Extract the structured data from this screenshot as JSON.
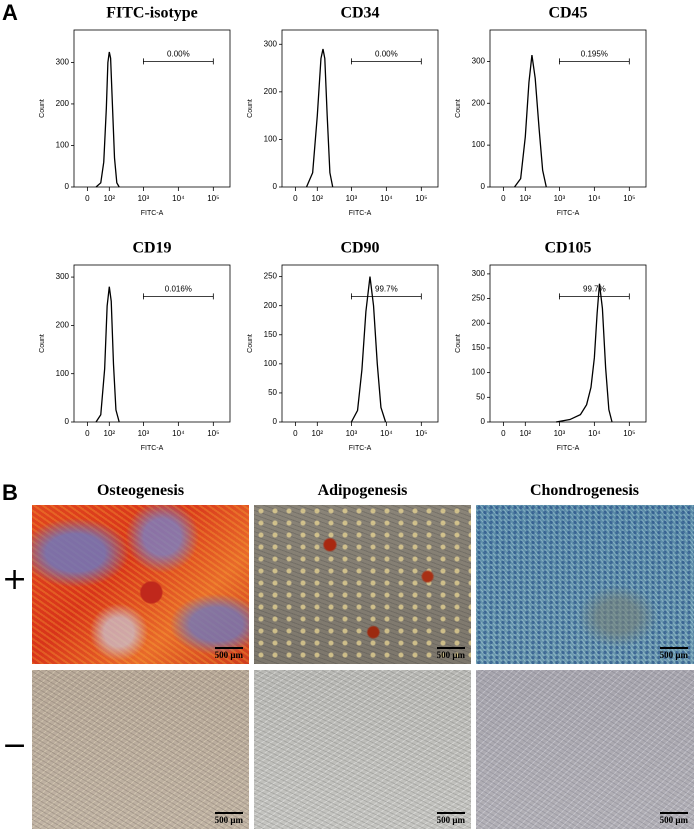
{
  "panel_labels": [
    "A",
    "B"
  ],
  "chart_data": [
    {
      "type": "line",
      "title": "FITC-isotype",
      "x_label": "FITC-A",
      "y_label": "Count",
      "xscale": "biexponential",
      "color": "#000000",
      "x": [
        30,
        50,
        65,
        80,
        90,
        100,
        110,
        125,
        145,
        170,
        200
      ],
      "values": [
        0,
        10,
        60,
        190,
        300,
        325,
        310,
        200,
        70,
        10,
        0
      ],
      "xlim": [
        -50,
        300000
      ],
      "ylim": [
        0,
        378
      ],
      "xticks": [
        0,
        {
          "value": 100,
          "label": "10²"
        },
        {
          "value": 1000,
          "label": "10³"
        },
        {
          "value": 10000,
          "label": "10⁴"
        },
        {
          "value": 100000,
          "label": "10⁵"
        }
      ],
      "yticks": [
        0,
        100,
        200,
        300
      ],
      "gate": {
        "bounds": [
          1000,
          100000
        ],
        "label": "0.00%"
      }
    },
    {
      "type": "line",
      "title": "CD34",
      "x_label": "FITC-A",
      "y_label": "Count",
      "xscale": "biexponential",
      "color": "#000000",
      "x": [
        40,
        70,
        100,
        130,
        150,
        170,
        200,
        240,
        290
      ],
      "values": [
        0,
        30,
        150,
        270,
        290,
        270,
        150,
        30,
        0
      ],
      "xlim": [
        -50,
        300000
      ],
      "ylim": [
        0,
        330
      ],
      "xticks": [
        0,
        {
          "value": 100,
          "label": "10²"
        },
        {
          "value": 1000,
          "label": "10³"
        },
        {
          "value": 10000,
          "label": "10⁴"
        },
        {
          "value": 100000,
          "label": "10⁵"
        }
      ],
      "yticks": [
        0,
        100,
        200,
        300
      ],
      "gate": {
        "bounds": [
          1000,
          100000
        ],
        "label": "0.00%"
      }
    },
    {
      "type": "line",
      "title": "CD45",
      "x_label": "FITC-A",
      "y_label": "Count",
      "xscale": "biexponential",
      "color": "#000000",
      "x": [
        40,
        70,
        100,
        130,
        160,
        200,
        260,
        330,
        420
      ],
      "values": [
        0,
        20,
        120,
        250,
        315,
        260,
        140,
        40,
        0
      ],
      "xlim": [
        -50,
        300000
      ],
      "ylim": [
        0,
        375
      ],
      "xticks": [
        0,
        {
          "value": 100,
          "label": "10²"
        },
        {
          "value": 1000,
          "label": "10³"
        },
        {
          "value": 10000,
          "label": "10⁴"
        },
        {
          "value": 100000,
          "label": "10⁵"
        }
      ],
      "yticks": [
        0,
        100,
        200,
        300
      ],
      "gate": {
        "bounds": [
          1000,
          100000
        ],
        "label": "0.195%"
      }
    },
    {
      "type": "line",
      "title": "CD19",
      "x_label": "FITC-A",
      "y_label": "Count",
      "xscale": "biexponential",
      "color": "#000000",
      "x": [
        30,
        50,
        70,
        85,
        100,
        115,
        135,
        160,
        200
      ],
      "values": [
        0,
        15,
        110,
        240,
        280,
        250,
        120,
        25,
        0
      ],
      "xlim": [
        -50,
        300000
      ],
      "ylim": [
        0,
        325
      ],
      "xticks": [
        0,
        {
          "value": 100,
          "label": "10²"
        },
        {
          "value": 1000,
          "label": "10³"
        },
        {
          "value": 10000,
          "label": "10⁴"
        },
        {
          "value": 100000,
          "label": "10⁵"
        }
      ],
      "yticks": [
        0,
        100,
        200,
        300
      ],
      "gate": {
        "bounds": [
          1000,
          100000
        ],
        "label": "0.016%"
      }
    },
    {
      "type": "line",
      "title": "CD90",
      "x_label": "FITC-A",
      "y_label": "Count",
      "xscale": "biexponential",
      "color": "#000000",
      "x": [
        1000,
        1500,
        2000,
        2600,
        3400,
        4300,
        5500,
        7000,
        9500
      ],
      "values": [
        0,
        20,
        90,
        190,
        250,
        200,
        100,
        25,
        0
      ],
      "xlim": [
        -50,
        300000
      ],
      "ylim": [
        0,
        270
      ],
      "xticks": [
        0,
        {
          "value": 100,
          "label": "10²"
        },
        {
          "value": 1000,
          "label": "10³"
        },
        {
          "value": 10000,
          "label": "10⁴"
        },
        {
          "value": 100000,
          "label": "10⁵"
        }
      ],
      "yticks": [
        0,
        50,
        100,
        150,
        200,
        250
      ],
      "gate": {
        "bounds": [
          1000,
          100000
        ],
        "label": "99.7%"
      }
    },
    {
      "type": "line",
      "title": "CD105",
      "x_label": "FITC-A",
      "y_label": "Count",
      "xscale": "biexponential",
      "color": "#000000",
      "x": [
        800,
        2000,
        4000,
        6000,
        8000,
        10000,
        12000,
        14000,
        17000,
        21000,
        26000,
        32000
      ],
      "values": [
        0,
        5,
        15,
        35,
        70,
        130,
        220,
        280,
        230,
        110,
        25,
        0
      ],
      "xlim": [
        -50,
        300000
      ],
      "ylim": [
        0,
        318
      ],
      "xticks": [
        0,
        {
          "value": 100,
          "label": "10²"
        },
        {
          "value": 1000,
          "label": "10³"
        },
        {
          "value": 10000,
          "label": "10⁴"
        },
        {
          "value": 100000,
          "label": "10⁵"
        }
      ],
      "yticks": [
        0,
        50,
        100,
        150,
        200,
        250,
        300
      ],
      "gate": {
        "bounds": [
          1000,
          100000
        ],
        "label": "99.7%"
      }
    }
  ],
  "micrographs": {
    "columns": [
      "Osteogenesis",
      "Adipogenesis",
      "Chondrogenesis"
    ],
    "rows": [
      "+",
      "−"
    ],
    "scale_bar": "500 μm"
  }
}
